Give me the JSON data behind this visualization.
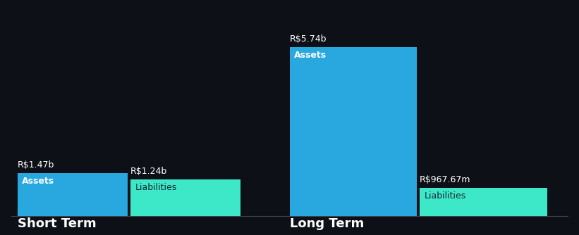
{
  "background_color": "#0d1117",
  "bar_color_assets": "#29a8e0",
  "bar_color_liabilities": "#3de8c8",
  "text_color_white": "#ffffff",
  "text_color_dark": "#1a2535",
  "short_term": {
    "assets_value": 1.47,
    "liabilities_value": 1.24,
    "assets_label": "R$1.47b",
    "liabilities_label": "R$1.24b",
    "assets_text": "Assets",
    "liabilities_text": "Liabilities",
    "title": "Short Term"
  },
  "long_term": {
    "assets_value": 5.74,
    "liabilities_value": 0.96767,
    "assets_label": "R$5.74b",
    "liabilities_label": "R$967.67m",
    "assets_text": "Assets",
    "liabilities_text": "Liabilities",
    "title": "Long Term"
  },
  "max_value": 5.74,
  "label_fontsize": 9,
  "inner_label_fontsize": 9,
  "title_fontsize": 13
}
